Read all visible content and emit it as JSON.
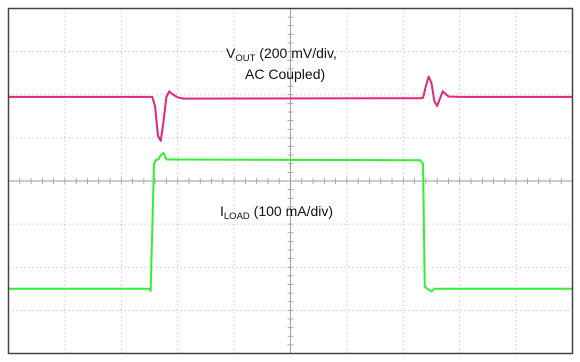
{
  "chart_data": {
    "type": "line",
    "grid": true,
    "divisions": {
      "x": 10,
      "y": 8
    },
    "colors": {
      "vout": "#e0267e",
      "iload": "#33ee33",
      "grid": "#9a9a9a",
      "frame": "#444444"
    },
    "x": [
      0,
      2.5,
      2.55,
      2.6,
      2.65,
      2.7,
      2.75,
      2.8,
      2.85,
      2.9,
      3.0,
      3.1,
      7.3,
      7.35,
      7.4,
      7.45,
      7.5,
      7.55,
      7.6,
      7.7,
      7.8,
      8.0,
      10
    ],
    "series": [
      {
        "id": "vout",
        "annotation": {
          "main": "V",
          "sub": "OUT",
          "line1_rest": " (200 mV/div,",
          "line2": "AC Coupled)"
        },
        "values": [
          5.95,
          5.95,
          5.95,
          5.72,
          5.05,
          4.93,
          5.4,
          5.95,
          6.08,
          6.02,
          5.94,
          5.91,
          5.92,
          5.93,
          6.2,
          6.42,
          6.27,
          5.85,
          5.74,
          6.08,
          5.96,
          5.95,
          5.95
        ]
      },
      {
        "id": "iload",
        "annotation": {
          "main": "I",
          "sub": "LOAD",
          "rest": " (100 mA/div)"
        },
        "x": [
          0,
          2.5,
          2.52,
          2.58,
          2.62,
          2.66,
          2.7,
          2.75,
          2.8,
          2.9,
          7.3,
          7.35,
          7.38,
          7.45,
          7.5,
          7.55,
          10
        ],
        "values": [
          1.5,
          1.5,
          1.45,
          4.4,
          4.5,
          4.5,
          4.6,
          4.65,
          4.5,
          4.5,
          4.48,
          4.4,
          1.55,
          1.48,
          1.44,
          1.5,
          1.5
        ]
      }
    ]
  }
}
